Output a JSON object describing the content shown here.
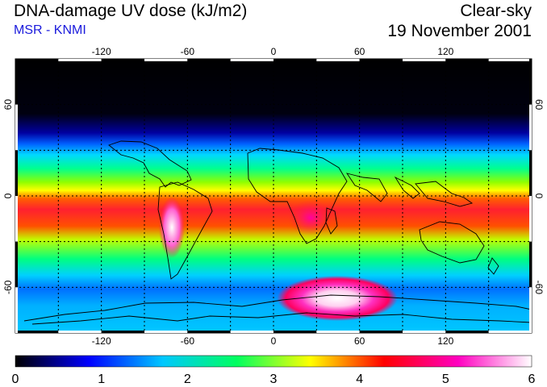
{
  "header": {
    "title": "DNA-damage UV dose (kJ/m2)",
    "subtitle": "MSR - KNMI",
    "condition": "Clear-sky",
    "date": "19 November 2001"
  },
  "map": {
    "longitude_ticks": [
      "-120",
      "-60",
      "0",
      "60",
      "120"
    ],
    "latitude_ticks": [
      "60",
      "0",
      "-60"
    ]
  },
  "colorbar": {
    "ticks": [
      "0",
      "1",
      "2",
      "3",
      "4",
      "5",
      "6"
    ],
    "colors": [
      "#000000",
      "#0000ff",
      "#00c8ff",
      "#00ff60",
      "#ffff00",
      "#ff0000",
      "#ff00c0",
      "#ffffff"
    ]
  }
}
